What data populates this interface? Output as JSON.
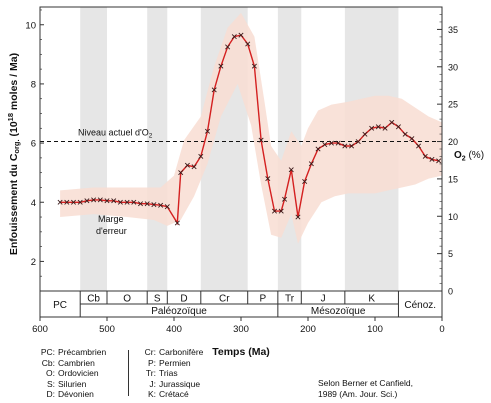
{
  "chart_data": {
    "type": "line",
    "xlabel": "Temps (Ma)",
    "ylabel": "Enfouissement du Corg. (10¹⁸ moles / Ma)",
    "ylabel_parts": {
      "main": "Enfouissement du C",
      "sub": "org.",
      "units_pre": " (10",
      "sup": "18",
      "units_post": " moles / Ma)"
    },
    "y2label": "O₂ (%)",
    "y2label_parts": {
      "main": "O",
      "sub": "2",
      "rest": " (%)"
    },
    "xlim": [
      600,
      0
    ],
    "ylim": [
      1,
      10.6
    ],
    "y2lim": [
      0,
      38
    ],
    "x_ticks": [
      600,
      500,
      400,
      300,
      200,
      100,
      0
    ],
    "y_ticks": [
      2,
      4,
      6,
      8,
      10
    ],
    "y2_ticks": [
      0,
      5,
      10,
      15,
      20,
      25,
      30,
      35
    ],
    "reference_line": {
      "label_parts": {
        "main": "Niveau actuel d'O",
        "sub": "2"
      },
      "o2_value": 20
    },
    "error_band_label": [
      "Marge",
      "d'erreur"
    ],
    "series": [
      {
        "points": [
          [
            570,
            4.0
          ],
          [
            560,
            4.0
          ],
          [
            550,
            4.0
          ],
          [
            540,
            4.0
          ],
          [
            530,
            4.05
          ],
          [
            520,
            4.08
          ],
          [
            510,
            4.08
          ],
          [
            500,
            4.05
          ],
          [
            490,
            4.05
          ],
          [
            480,
            4.0
          ],
          [
            470,
            4.0
          ],
          [
            460,
            4.0
          ],
          [
            450,
            3.95
          ],
          [
            440,
            3.95
          ],
          [
            430,
            3.92
          ],
          [
            420,
            3.9
          ],
          [
            410,
            3.85
          ],
          [
            395,
            3.3
          ],
          [
            390,
            5.0
          ],
          [
            380,
            5.25
          ],
          [
            370,
            5.2
          ],
          [
            360,
            5.55
          ],
          [
            350,
            6.4
          ],
          [
            340,
            7.8
          ],
          [
            330,
            8.6
          ],
          [
            320,
            9.25
          ],
          [
            310,
            9.6
          ],
          [
            300,
            9.65
          ],
          [
            290,
            9.35
          ],
          [
            280,
            8.6
          ],
          [
            270,
            6.1
          ],
          [
            260,
            4.8
          ],
          [
            250,
            3.7
          ],
          [
            240,
            3.7
          ],
          [
            235,
            4.1
          ],
          [
            225,
            5.1
          ],
          [
            215,
            3.5
          ],
          [
            205,
            4.7
          ],
          [
            195,
            5.3
          ],
          [
            185,
            5.8
          ],
          [
            175,
            5.95
          ],
          [
            165,
            6.0
          ],
          [
            155,
            6.0
          ],
          [
            145,
            5.9
          ],
          [
            135,
            5.9
          ],
          [
            125,
            6.05
          ],
          [
            115,
            6.3
          ],
          [
            105,
            6.5
          ],
          [
            95,
            6.55
          ],
          [
            85,
            6.5
          ],
          [
            75,
            6.7
          ],
          [
            65,
            6.55
          ],
          [
            55,
            6.3
          ],
          [
            45,
            6.15
          ],
          [
            35,
            5.9
          ],
          [
            25,
            5.55
          ],
          [
            15,
            5.45
          ],
          [
            5,
            5.4
          ]
        ]
      }
    ],
    "error_band": {
      "upper": [
        [
          570,
          4.4
        ],
        [
          520,
          4.5
        ],
        [
          470,
          4.5
        ],
        [
          420,
          4.5
        ],
        [
          400,
          4.9
        ],
        [
          385,
          6.1
        ],
        [
          360,
          6.9
        ],
        [
          340,
          8.6
        ],
        [
          320,
          9.9
        ],
        [
          300,
          10.4
        ],
        [
          280,
          9.6
        ],
        [
          265,
          7.4
        ],
        [
          255,
          5.9
        ],
        [
          240,
          5.4
        ],
        [
          225,
          6.4
        ],
        [
          210,
          5.9
        ],
        [
          200,
          6.5
        ],
        [
          185,
          7.1
        ],
        [
          165,
          7.3
        ],
        [
          140,
          7.4
        ],
        [
          120,
          7.5
        ],
        [
          100,
          7.6
        ],
        [
          80,
          7.6
        ],
        [
          60,
          7.5
        ],
        [
          40,
          7.2
        ],
        [
          20,
          6.9
        ],
        [
          0,
          6.7
        ]
      ],
      "lower": [
        [
          0,
          4.9
        ],
        [
          20,
          4.8
        ],
        [
          40,
          4.6
        ],
        [
          60,
          4.5
        ],
        [
          80,
          4.4
        ],
        [
          100,
          4.3
        ],
        [
          120,
          4.3
        ],
        [
          140,
          4.3
        ],
        [
          160,
          4.2
        ],
        [
          180,
          4.0
        ],
        [
          200,
          3.3
        ],
        [
          215,
          2.6
        ],
        [
          225,
          3.6
        ],
        [
          240,
          2.8
        ],
        [
          255,
          2.9
        ],
        [
          270,
          4.6
        ],
        [
          285,
          6.6
        ],
        [
          305,
          8.0
        ],
        [
          330,
          6.9
        ],
        [
          350,
          5.3
        ],
        [
          370,
          4.2
        ],
        [
          390,
          3.4
        ],
        [
          410,
          3.2
        ],
        [
          430,
          3.4
        ],
        [
          470,
          3.5
        ],
        [
          520,
          3.6
        ],
        [
          570,
          3.5
        ]
      ]
    },
    "periods": [
      {
        "label": "PC",
        "start": 600,
        "end": 540,
        "shaded": false
      },
      {
        "label": "Cb",
        "start": 540,
        "end": 500,
        "shaded": true
      },
      {
        "label": "O",
        "start": 500,
        "end": 440,
        "shaded": false
      },
      {
        "label": "S",
        "start": 440,
        "end": 410,
        "shaded": true
      },
      {
        "label": "D",
        "start": 410,
        "end": 360,
        "shaded": false
      },
      {
        "label": "Cr",
        "start": 360,
        "end": 290,
        "shaded": true
      },
      {
        "label": "P",
        "start": 290,
        "end": 245,
        "shaded": false
      },
      {
        "label": "Tr",
        "start": 245,
        "end": 210,
        "shaded": true
      },
      {
        "label": "J",
        "start": 210,
        "end": 145,
        "shaded": false
      },
      {
        "label": "K",
        "start": 145,
        "end": 65,
        "shaded": true
      },
      {
        "label": "Cénoz.",
        "start": 65,
        "end": 0,
        "shaded": false
      }
    ],
    "eras": [
      {
        "label": "Paléozoïque",
        "start": 540,
        "end": 245
      },
      {
        "label": "Mésozoïque",
        "start": 245,
        "end": 65
      }
    ],
    "colors": {
      "line": "#d42020",
      "band": "#f8ddd2",
      "period_shade": "#e6e6e6",
      "axis": "#333333",
      "reference": "#111111"
    }
  },
  "legend": {
    "left": [
      {
        "abbr": "PC:",
        "name": "Précambrien"
      },
      {
        "abbr": "Cb:",
        "name": "Cambrien"
      },
      {
        "abbr": "O:",
        "name": "Ordovicien"
      },
      {
        "abbr": "S:",
        "name": "Silurien"
      },
      {
        "abbr": "D:",
        "name": "Dévonien"
      }
    ],
    "right": [
      {
        "abbr": "Cr:",
        "name": "Carbonifère"
      },
      {
        "abbr": "P:",
        "name": "Permien"
      },
      {
        "abbr": "Tr:",
        "name": "Trias"
      },
      {
        "abbr": "J:",
        "name": "Jurassique"
      },
      {
        "abbr": "K:",
        "name": "Crétacé"
      }
    ]
  },
  "source": {
    "line1": "Selon Berner et Canfield,",
    "line2": "1989 (Am. Jour. Sci.)"
  }
}
